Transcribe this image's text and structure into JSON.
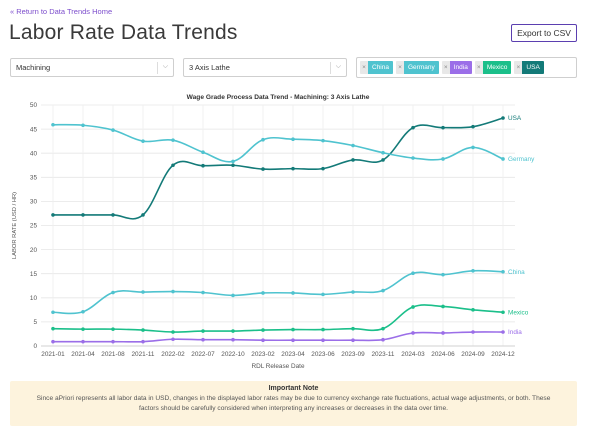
{
  "nav": {
    "back_label": "« Return to Data Trends Home"
  },
  "header": {
    "title": "Labor Rate Data Trends",
    "export_label": "Export to CSV"
  },
  "filters": {
    "process": {
      "value": "Machining"
    },
    "machine": {
      "value": "3 Axis Lathe"
    },
    "countries": [
      {
        "label": "China",
        "color": "#4fc3cf"
      },
      {
        "label": "Germany",
        "color": "#4fc3cf"
      },
      {
        "label": "India",
        "color": "#9b6ee8"
      },
      {
        "label": "Mexico",
        "color": "#1bbf8a"
      },
      {
        "label": "USA",
        "color": "#137a78"
      }
    ]
  },
  "note": {
    "title": "Important Note",
    "body": "Since aPriori represents all labor data in USD, changes in the displayed labor rates may be due to currency exchange rate fluctuations, actual wage adjustments, or both. These factors should be carefully considered when interpreting any increases or decreases in the data over time."
  },
  "chart_data": {
    "type": "line",
    "title": "Wage Grade Process Data Trend - Machining: 3 Axis Lathe",
    "xlabel": "RDL Release Date",
    "ylabel": "LABOR RATE (USD / HR)",
    "ylim": [
      0,
      50
    ],
    "yticks": [
      0,
      5,
      10,
      15,
      20,
      25,
      30,
      35,
      40,
      45,
      50
    ],
    "grid": true,
    "legend": "inline-end-labels",
    "categories": [
      "2021-01",
      "2021-04",
      "2021-08",
      "2021-11",
      "2022-02",
      "2022-07",
      "2022-10",
      "2023-02",
      "2023-04",
      "2023-06",
      "2023-09",
      "2023-11",
      "2024-03",
      "2024-06",
      "2024-09",
      "2024-12"
    ],
    "series": [
      {
        "name": "USA",
        "color": "#137a78",
        "values": [
          27.2,
          27.2,
          27.2,
          27.2,
          37.5,
          37.4,
          37.5,
          36.7,
          36.8,
          36.8,
          38.6,
          38.6,
          45.3,
          45.3,
          45.5,
          47.3
        ]
      },
      {
        "name": "Germany",
        "color": "#4fc3cf",
        "values": [
          45.9,
          45.8,
          44.8,
          42.5,
          42.7,
          40.2,
          38.3,
          42.8,
          42.9,
          42.6,
          41.6,
          40.1,
          39,
          38.8,
          41.2,
          38.8
        ]
      },
      {
        "name": "China",
        "color": "#4fc3cf",
        "values": [
          7,
          7.1,
          11.1,
          11.2,
          11.3,
          11.1,
          10.5,
          11,
          11,
          10.7,
          11.2,
          11.5,
          15.1,
          14.8,
          15.6,
          15.4
        ]
      },
      {
        "name": "Mexico",
        "color": "#1bbf8a",
        "values": [
          3.6,
          3.5,
          3.5,
          3.3,
          2.9,
          3.1,
          3.1,
          3.3,
          3.4,
          3.4,
          3.6,
          3.6,
          8.1,
          8.2,
          7.5,
          7
        ]
      },
      {
        "name": "India",
        "color": "#9b6ee8",
        "values": [
          0.9,
          0.9,
          0.9,
          0.9,
          1.4,
          1.3,
          1.3,
          1.2,
          1.2,
          1.2,
          1.2,
          1.3,
          2.7,
          2.7,
          2.9,
          2.9
        ]
      }
    ]
  }
}
